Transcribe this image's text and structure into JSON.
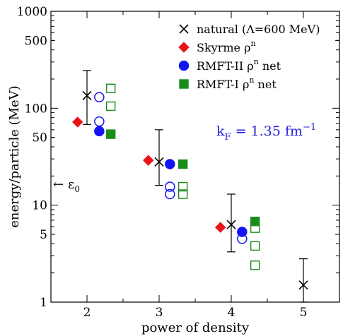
{
  "chart_data": {
    "type": "scatter",
    "xlabel": "power of density",
    "ylabel": "energy/particle (MeV)",
    "xlim": [
      1.5,
      5.5
    ],
    "ylim": [
      1,
      1000
    ],
    "yscale": "log",
    "x_ticks": [
      2,
      3,
      4,
      5
    ],
    "y_ticks": [
      1,
      5,
      10,
      50,
      100,
      500,
      1000
    ],
    "legend_position": "top-right",
    "annotation_kf": {
      "text": "k",
      "sub": "F",
      "rest": " = 1.35 fm",
      "sup": "−1",
      "color": "#1f1fd6"
    },
    "annotation_eps": {
      "arrow": "←",
      "text": "ε",
      "sub": "0",
      "y": 17
    },
    "series": [
      {
        "name": "natural (Λ=600 MeV)",
        "legend": {
          "text": "natural (Λ=600 MeV)"
        },
        "marker": "x",
        "color": "#000000",
        "points": [
          {
            "x": 2,
            "y": 135,
            "ylo": 68,
            "yhi": 245
          },
          {
            "x": 3,
            "y": 28,
            "ylo": 16,
            "yhi": 60
          },
          {
            "x": 4,
            "y": 6.3,
            "ylo": 3.3,
            "yhi": 13
          },
          {
            "x": 5,
            "y": 1.5,
            "ylo": 1.0,
            "yhi": 2.8
          }
        ]
      },
      {
        "name": "Skyrme ρn",
        "legend": {
          "text": "Skyrme ρ",
          "sup": "n"
        },
        "marker": "diamond",
        "color": "#e8141a",
        "points": [
          {
            "x": 1.87,
            "y": 72
          },
          {
            "x": 2.85,
            "y": 29
          },
          {
            "x": 3.85,
            "y": 5.9
          }
        ]
      },
      {
        "name": "RMFT-II ρn net",
        "legend": {
          "text": "RMFT-II ρ",
          "sup": "n",
          "after": " net"
        },
        "marker": "circle",
        "color": "#1414f0",
        "points": [
          {
            "x": 2.17,
            "y": 130,
            "fill": false
          },
          {
            "x": 2.17,
            "y": 73,
            "fill": false
          },
          {
            "x": 2.17,
            "y": 58,
            "fill": true
          },
          {
            "x": 3.15,
            "y": 26.5,
            "fill": true
          },
          {
            "x": 3.15,
            "y": 15.5,
            "fill": false
          },
          {
            "x": 3.15,
            "y": 13,
            "fill": false
          },
          {
            "x": 4.15,
            "y": 5.3,
            "fill": true
          },
          {
            "x": 4.15,
            "y": 4.5,
            "fill": false
          }
        ]
      },
      {
        "name": "RMFT-I ρn net",
        "legend": {
          "text": "RMFT-I ρ",
          "sup": "n",
          "after": " net"
        },
        "marker": "square",
        "color": "#1a8c1a",
        "points": [
          {
            "x": 2.33,
            "y": 160,
            "fill": false
          },
          {
            "x": 2.33,
            "y": 105,
            "fill": false
          },
          {
            "x": 2.33,
            "y": 54,
            "fill": true
          },
          {
            "x": 3.33,
            "y": 26.5,
            "fill": true
          },
          {
            "x": 3.33,
            "y": 15.5,
            "fill": false
          },
          {
            "x": 3.33,
            "y": 13,
            "fill": false
          },
          {
            "x": 4.33,
            "y": 6.8,
            "fill": true
          },
          {
            "x": 4.33,
            "y": 5.8,
            "fill": false
          },
          {
            "x": 4.33,
            "y": 3.8,
            "fill": false
          },
          {
            "x": 4.33,
            "y": 2.4,
            "fill": false
          }
        ]
      }
    ]
  }
}
